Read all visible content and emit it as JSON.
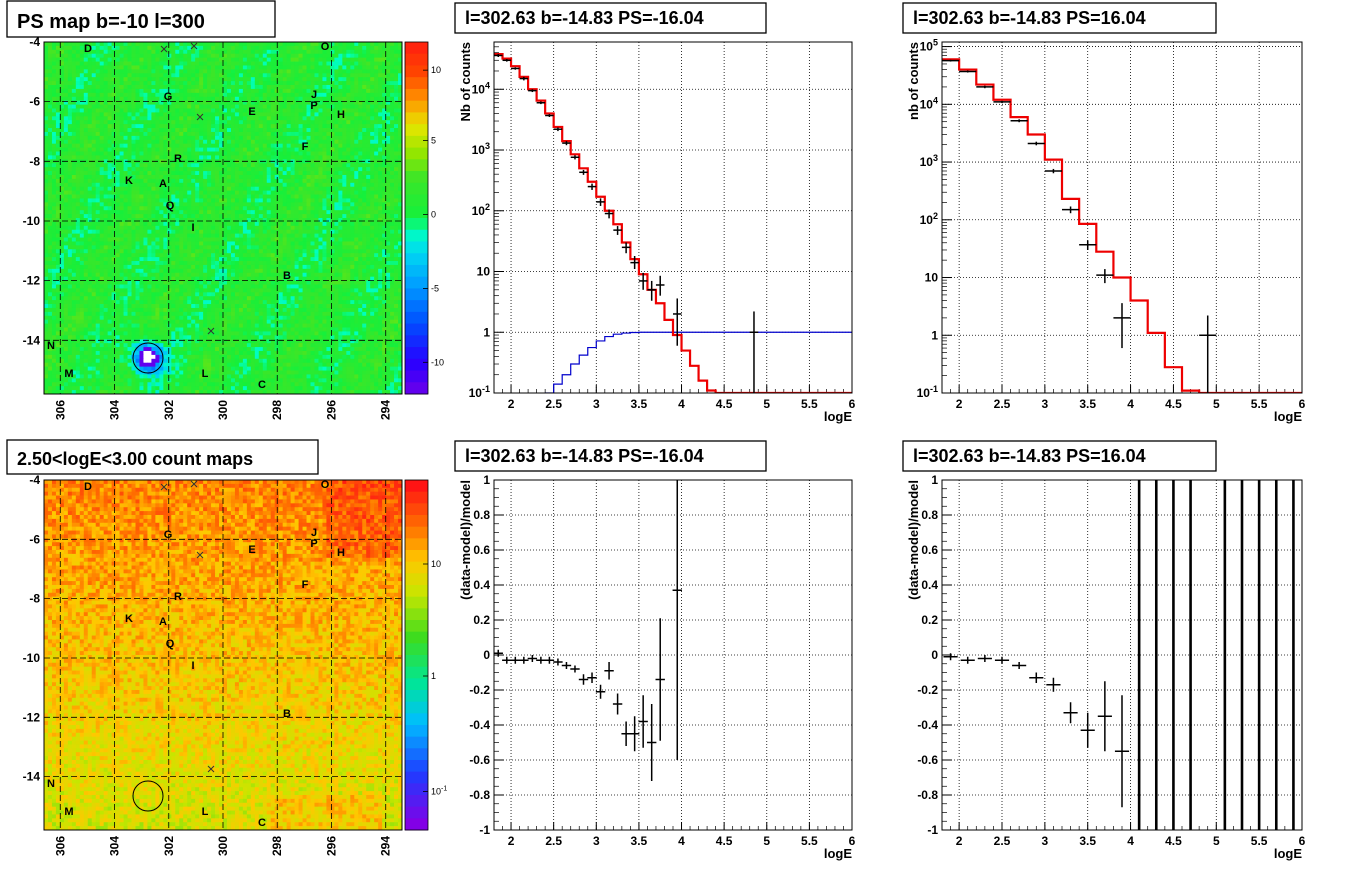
{
  "panels": [
    {
      "id": "ps-map",
      "kind": "map",
      "title": "PS map b=-10 l=300",
      "colormap": "ps",
      "xticks": [
        "306",
        "304",
        "302",
        "300",
        "298",
        "296",
        "294"
      ],
      "yticks": [
        "-4",
        "-6",
        "-8",
        "-10",
        "-12",
        "-14"
      ],
      "colorbar_ticks": [
        "10",
        "5",
        "0",
        "-5",
        "-10"
      ],
      "sources": [
        "D",
        "O",
        "G",
        "J",
        "P",
        "H",
        "E",
        "F",
        "R",
        "K",
        "A",
        "Q",
        "I",
        "B",
        "N",
        "M",
        "L",
        "C"
      ],
      "crosses": 4
    },
    {
      "id": "count-map",
      "kind": "map",
      "title": "2.50<logE<3.00 count maps",
      "colormap": "counts",
      "xticks": [
        "306",
        "304",
        "302",
        "300",
        "298",
        "296",
        "294"
      ],
      "yticks": [
        "-4",
        "-6",
        "-8",
        "-10",
        "-12",
        "-14"
      ],
      "colorbar_ticks": [
        "10",
        "1",
        "10^-1"
      ],
      "sources": [
        "D",
        "O",
        "G",
        "J",
        "P",
        "H",
        "E",
        "F",
        "R",
        "K",
        "A",
        "Q",
        "I",
        "B",
        "N",
        "M",
        "L",
        "C"
      ],
      "crosses": 4
    }
  ],
  "chart_data": [
    {
      "id": "spec1",
      "type": "line",
      "title": "l=302.63 b=-14.83 PS=-16.04",
      "xlabel": "logE",
      "ylabel": "Nb of counts",
      "xlim": [
        1.8,
        6.0
      ],
      "ylim": [
        0.1,
        60000
      ],
      "log_y": true,
      "grid": true,
      "xticks": [
        "2",
        "2.5",
        "3",
        "3.5",
        "4",
        "4.5",
        "5",
        "5.5",
        "6"
      ],
      "yticks": [
        "10^-1",
        "1",
        "10",
        "10^2",
        "10^3",
        "10^4"
      ],
      "model_steps_red": {
        "edges": [
          1.8,
          1.9,
          2.0,
          2.1,
          2.2,
          2.3,
          2.4,
          2.5,
          2.6,
          2.7,
          2.8,
          2.9,
          3.0,
          3.1,
          3.2,
          3.3,
          3.4,
          3.5,
          3.6,
          3.7,
          3.8,
          3.9,
          4.0,
          4.1,
          4.2,
          4.3,
          4.4,
          4.5,
          4.6,
          4.7,
          4.8,
          4.9,
          5.0,
          5.1,
          5.2,
          5.3,
          5.4,
          5.5,
          5.6,
          5.7,
          5.8,
          5.9,
          6.0
        ],
        "values": [
          38000,
          32000,
          24000,
          16000,
          10000,
          6500,
          4000,
          2400,
          1400,
          850,
          500,
          300,
          170,
          100,
          60,
          30,
          16,
          9,
          5,
          3,
          1.6,
          0.9,
          0.5,
          0.28,
          0.16,
          0.11,
          0.1,
          0.1,
          0.1,
          0.1,
          0.1,
          0.1,
          0.1,
          0.1,
          0.1,
          0.1,
          0.1,
          0.1,
          0.1,
          0.1,
          0.1,
          0.1
        ]
      },
      "model_steps_blue": {
        "edges": [
          2.4,
          2.5,
          2.6,
          2.7,
          2.8,
          2.9,
          3.0,
          3.1,
          3.2,
          3.3,
          3.4,
          3.5,
          3.6,
          3.7,
          3.8,
          3.9,
          4.0,
          6.0
        ],
        "values": [
          0.1,
          0.14,
          0.2,
          0.3,
          0.42,
          0.56,
          0.72,
          0.85,
          0.93,
          0.97,
          0.99,
          1.0,
          1.0,
          1.0,
          1.0,
          1.0,
          1.0
        ]
      },
      "data_points": [
        {
          "x": 1.85,
          "y": 36000,
          "ylo": 34000,
          "yhi": 38000
        },
        {
          "x": 1.95,
          "y": 30000,
          "ylo": 28500,
          "yhi": 31500
        },
        {
          "x": 2.05,
          "y": 22000,
          "ylo": 21000,
          "yhi": 23000
        },
        {
          "x": 2.15,
          "y": 15000,
          "ylo": 14000,
          "yhi": 16000
        },
        {
          "x": 2.25,
          "y": 9500,
          "ylo": 9000,
          "yhi": 10000
        },
        {
          "x": 2.35,
          "y": 6000,
          "ylo": 5700,
          "yhi": 6300
        },
        {
          "x": 2.45,
          "y": 3700,
          "ylo": 3500,
          "yhi": 3900
        },
        {
          "x": 2.55,
          "y": 2200,
          "ylo": 2050,
          "yhi": 2350
        },
        {
          "x": 2.65,
          "y": 1300,
          "ylo": 1200,
          "yhi": 1400
        },
        {
          "x": 2.75,
          "y": 760,
          "ylo": 700,
          "yhi": 820
        },
        {
          "x": 2.85,
          "y": 430,
          "ylo": 390,
          "yhi": 470
        },
        {
          "x": 2.95,
          "y": 250,
          "ylo": 220,
          "yhi": 280
        },
        {
          "x": 3.05,
          "y": 140,
          "ylo": 120,
          "yhi": 160
        },
        {
          "x": 3.15,
          "y": 90,
          "ylo": 75,
          "yhi": 105
        },
        {
          "x": 3.25,
          "y": 48,
          "ylo": 40,
          "yhi": 56
        },
        {
          "x": 3.35,
          "y": 25,
          "ylo": 20,
          "yhi": 30
        },
        {
          "x": 3.45,
          "y": 14,
          "ylo": 11,
          "yhi": 18
        },
        {
          "x": 3.55,
          "y": 7,
          "ylo": 5,
          "yhi": 9.5
        },
        {
          "x": 3.65,
          "y": 5,
          "ylo": 3.3,
          "yhi": 7
        },
        {
          "x": 3.75,
          "y": 6,
          "ylo": 4,
          "yhi": 8.5
        },
        {
          "x": 3.95,
          "y": 2,
          "ylo": 0.6,
          "yhi": 3.6
        },
        {
          "x": 4.85,
          "y": 1,
          "ylo": 0.1,
          "yhi": 2.2
        }
      ]
    },
    {
      "id": "spec2",
      "type": "line",
      "title": "l=302.63 b=-14.83 PS=16.04",
      "xlabel": "logE",
      "ylabel": "nb of counts",
      "xlim": [
        1.8,
        6.0
      ],
      "ylim": [
        0.1,
        120000
      ],
      "log_y": true,
      "grid": true,
      "xticks": [
        "2",
        "2.5",
        "3",
        "3.5",
        "4",
        "4.5",
        "5",
        "5.5",
        "6"
      ],
      "yticks": [
        "10^-1",
        "1",
        "10",
        "10^2",
        "10^3",
        "10^4",
        "10^5"
      ],
      "model_steps_red": {
        "edges": [
          1.8,
          2.0,
          2.2,
          2.4,
          2.6,
          2.8,
          3.0,
          3.2,
          3.4,
          3.6,
          3.8,
          4.0,
          4.2,
          4.4,
          4.6,
          4.8,
          5.0,
          5.2,
          5.4,
          5.6,
          5.8,
          6.0
        ],
        "values": [
          60000,
          40000,
          22000,
          12000,
          6000,
          3000,
          1100,
          230,
          85,
          28,
          10,
          4,
          1.1,
          0.28,
          0.11,
          0.1,
          0.1,
          0.1,
          0.1,
          0.1,
          0.1
        ]
      },
      "data_points": [
        {
          "x": 1.9,
          "y": 57000,
          "ylo": 55000,
          "yhi": 59000
        },
        {
          "x": 2.1,
          "y": 37000,
          "ylo": 35500,
          "yhi": 38500
        },
        {
          "x": 2.3,
          "y": 20000,
          "ylo": 19000,
          "yhi": 21000
        },
        {
          "x": 2.5,
          "y": 11000,
          "ylo": 10500,
          "yhi": 11500
        },
        {
          "x": 2.7,
          "y": 5200,
          "ylo": 4900,
          "yhi": 5500
        },
        {
          "x": 2.9,
          "y": 2100,
          "ylo": 1950,
          "yhi": 2250
        },
        {
          "x": 3.1,
          "y": 700,
          "ylo": 640,
          "yhi": 760
        },
        {
          "x": 3.3,
          "y": 150,
          "ylo": 130,
          "yhi": 170
        },
        {
          "x": 3.5,
          "y": 37,
          "ylo": 30,
          "yhi": 44
        },
        {
          "x": 3.7,
          "y": 11,
          "ylo": 8,
          "yhi": 14
        },
        {
          "x": 3.9,
          "y": 2,
          "ylo": 0.6,
          "yhi": 3.6
        },
        {
          "x": 4.9,
          "y": 1,
          "ylo": 0.1,
          "yhi": 2.2
        }
      ]
    },
    {
      "id": "res1",
      "type": "scatter",
      "title": "l=302.63 b=-14.83 PS=-16.04",
      "xlabel": "logE",
      "ylabel": "(data-model)/model",
      "xlim": [
        1.8,
        6.0
      ],
      "ylim": [
        -1,
        1
      ],
      "grid": true,
      "xticks": [
        "2",
        "2.5",
        "3",
        "3.5",
        "4",
        "4.5",
        "5",
        "5.5",
        "6"
      ],
      "yticks": [
        "-1",
        "-0.8",
        "-0.6",
        "-0.4",
        "-0.2",
        "0",
        "0.2",
        "0.4",
        "0.6",
        "0.8",
        "1"
      ],
      "data_points": [
        {
          "x": 1.85,
          "y": 0.01,
          "yerr": 0.02
        },
        {
          "x": 1.95,
          "y": -0.03,
          "yerr": 0.02
        },
        {
          "x": 2.05,
          "y": -0.03,
          "yerr": 0.02
        },
        {
          "x": 2.15,
          "y": -0.03,
          "yerr": 0.02
        },
        {
          "x": 2.25,
          "y": -0.02,
          "yerr": 0.02
        },
        {
          "x": 2.35,
          "y": -0.03,
          "yerr": 0.02
        },
        {
          "x": 2.45,
          "y": -0.03,
          "yerr": 0.02
        },
        {
          "x": 2.55,
          "y": -0.04,
          "yerr": 0.02
        },
        {
          "x": 2.65,
          "y": -0.06,
          "yerr": 0.02
        },
        {
          "x": 2.75,
          "y": -0.08,
          "yerr": 0.02
        },
        {
          "x": 2.85,
          "y": -0.14,
          "yerr": 0.03
        },
        {
          "x": 2.95,
          "y": -0.13,
          "yerr": 0.03
        },
        {
          "x": 3.05,
          "y": -0.21,
          "yerr": 0.04
        },
        {
          "x": 3.15,
          "y": -0.09,
          "yerr": 0.05
        },
        {
          "x": 3.25,
          "y": -0.28,
          "yerr": 0.06
        },
        {
          "x": 3.35,
          "y": -0.45,
          "yerr": 0.07
        },
        {
          "x": 3.45,
          "y": -0.45,
          "yerr": 0.1
        },
        {
          "x": 3.55,
          "y": -0.38,
          "yerr": 0.15
        },
        {
          "x": 3.65,
          "y": -0.5,
          "yerr": 0.22
        },
        {
          "x": 3.75,
          "y": -0.14,
          "yerr": 0.35
        },
        {
          "x": 3.95,
          "y": 0.37,
          "yerr": 0.97
        }
      ]
    },
    {
      "id": "res2",
      "type": "scatter",
      "title": "l=302.63 b=-14.83 PS=16.04",
      "xlabel": "logE",
      "ylabel": "(data-model)/model",
      "xlim": [
        1.8,
        6.0
      ],
      "ylim": [
        -1,
        1
      ],
      "grid": true,
      "xticks": [
        "2",
        "2.5",
        "3",
        "3.5",
        "4",
        "4.5",
        "5",
        "5.5",
        "6"
      ],
      "yticks": [
        "-1",
        "-0.8",
        "-0.6",
        "-0.4",
        "-0.2",
        "0",
        "0.2",
        "0.4",
        "0.6",
        "0.8",
        "1"
      ],
      "data_points": [
        {
          "x": 1.9,
          "y": -0.01,
          "yerr": 0.02
        },
        {
          "x": 2.1,
          "y": -0.03,
          "yerr": 0.02
        },
        {
          "x": 2.3,
          "y": -0.02,
          "yerr": 0.02
        },
        {
          "x": 2.5,
          "y": -0.03,
          "yerr": 0.02
        },
        {
          "x": 2.7,
          "y": -0.06,
          "yerr": 0.02
        },
        {
          "x": 2.9,
          "y": -0.13,
          "yerr": 0.03
        },
        {
          "x": 3.1,
          "y": -0.17,
          "yerr": 0.04
        },
        {
          "x": 3.3,
          "y": -0.33,
          "yerr": 0.06
        },
        {
          "x": 3.5,
          "y": -0.43,
          "yerr": 0.1
        },
        {
          "x": 3.7,
          "y": -0.35,
          "yerr": 0.2
        },
        {
          "x": 3.9,
          "y": -0.55,
          "yerr": 0.32
        }
      ],
      "full_bars_x": [
        4.1,
        4.3,
        4.5,
        4.7,
        5.1,
        5.3,
        5.5,
        5.7,
        5.9
      ]
    }
  ]
}
